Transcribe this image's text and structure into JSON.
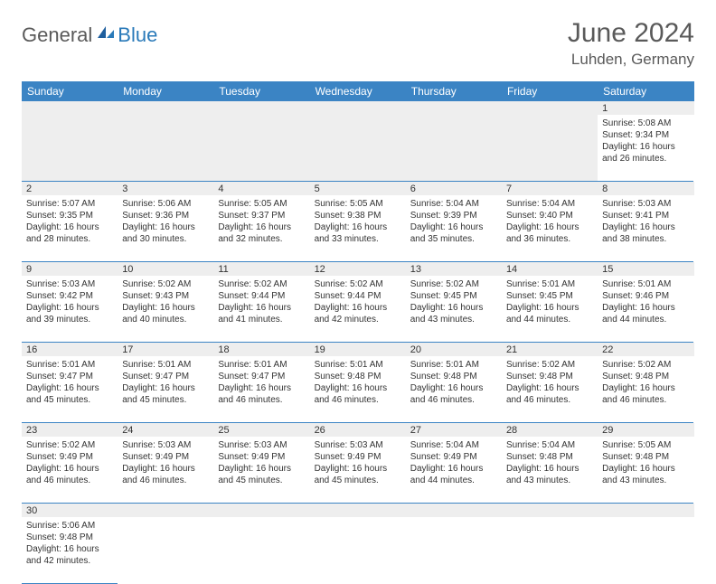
{
  "logo": {
    "general": "General",
    "blue": "Blue"
  },
  "title": "June 2024",
  "location": "Luhden, Germany",
  "colors": {
    "header_bg": "#3b84c4",
    "header_text": "#ffffff",
    "daynum_bg": "#eeeeee",
    "cell_border": "#3b84c4",
    "text": "#333333",
    "logo_gray": "#5a5a5a",
    "logo_blue": "#2a7ab9"
  },
  "day_headers": [
    "Sunday",
    "Monday",
    "Tuesday",
    "Wednesday",
    "Thursday",
    "Friday",
    "Saturday"
  ],
  "weeks": [
    [
      null,
      null,
      null,
      null,
      null,
      null,
      {
        "n": "1",
        "sr": "5:08 AM",
        "ss": "9:34 PM",
        "dl": "16 hours",
        "dm": "and 26 minutes."
      }
    ],
    [
      {
        "n": "2",
        "sr": "5:07 AM",
        "ss": "9:35 PM",
        "dl": "16 hours",
        "dm": "and 28 minutes."
      },
      {
        "n": "3",
        "sr": "5:06 AM",
        "ss": "9:36 PM",
        "dl": "16 hours",
        "dm": "and 30 minutes."
      },
      {
        "n": "4",
        "sr": "5:05 AM",
        "ss": "9:37 PM",
        "dl": "16 hours",
        "dm": "and 32 minutes."
      },
      {
        "n": "5",
        "sr": "5:05 AM",
        "ss": "9:38 PM",
        "dl": "16 hours",
        "dm": "and 33 minutes."
      },
      {
        "n": "6",
        "sr": "5:04 AM",
        "ss": "9:39 PM",
        "dl": "16 hours",
        "dm": "and 35 minutes."
      },
      {
        "n": "7",
        "sr": "5:04 AM",
        "ss": "9:40 PM",
        "dl": "16 hours",
        "dm": "and 36 minutes."
      },
      {
        "n": "8",
        "sr": "5:03 AM",
        "ss": "9:41 PM",
        "dl": "16 hours",
        "dm": "and 38 minutes."
      }
    ],
    [
      {
        "n": "9",
        "sr": "5:03 AM",
        "ss": "9:42 PM",
        "dl": "16 hours",
        "dm": "and 39 minutes."
      },
      {
        "n": "10",
        "sr": "5:02 AM",
        "ss": "9:43 PM",
        "dl": "16 hours",
        "dm": "and 40 minutes."
      },
      {
        "n": "11",
        "sr": "5:02 AM",
        "ss": "9:44 PM",
        "dl": "16 hours",
        "dm": "and 41 minutes."
      },
      {
        "n": "12",
        "sr": "5:02 AM",
        "ss": "9:44 PM",
        "dl": "16 hours",
        "dm": "and 42 minutes."
      },
      {
        "n": "13",
        "sr": "5:02 AM",
        "ss": "9:45 PM",
        "dl": "16 hours",
        "dm": "and 43 minutes."
      },
      {
        "n": "14",
        "sr": "5:01 AM",
        "ss": "9:45 PM",
        "dl": "16 hours",
        "dm": "and 44 minutes."
      },
      {
        "n": "15",
        "sr": "5:01 AM",
        "ss": "9:46 PM",
        "dl": "16 hours",
        "dm": "and 44 minutes."
      }
    ],
    [
      {
        "n": "16",
        "sr": "5:01 AM",
        "ss": "9:47 PM",
        "dl": "16 hours",
        "dm": "and 45 minutes."
      },
      {
        "n": "17",
        "sr": "5:01 AM",
        "ss": "9:47 PM",
        "dl": "16 hours",
        "dm": "and 45 minutes."
      },
      {
        "n": "18",
        "sr": "5:01 AM",
        "ss": "9:47 PM",
        "dl": "16 hours",
        "dm": "and 46 minutes."
      },
      {
        "n": "19",
        "sr": "5:01 AM",
        "ss": "9:48 PM",
        "dl": "16 hours",
        "dm": "and 46 minutes."
      },
      {
        "n": "20",
        "sr": "5:01 AM",
        "ss": "9:48 PM",
        "dl": "16 hours",
        "dm": "and 46 minutes."
      },
      {
        "n": "21",
        "sr": "5:02 AM",
        "ss": "9:48 PM",
        "dl": "16 hours",
        "dm": "and 46 minutes."
      },
      {
        "n": "22",
        "sr": "5:02 AM",
        "ss": "9:48 PM",
        "dl": "16 hours",
        "dm": "and 46 minutes."
      }
    ],
    [
      {
        "n": "23",
        "sr": "5:02 AM",
        "ss": "9:49 PM",
        "dl": "16 hours",
        "dm": "and 46 minutes."
      },
      {
        "n": "24",
        "sr": "5:03 AM",
        "ss": "9:49 PM",
        "dl": "16 hours",
        "dm": "and 46 minutes."
      },
      {
        "n": "25",
        "sr": "5:03 AM",
        "ss": "9:49 PM",
        "dl": "16 hours",
        "dm": "and 45 minutes."
      },
      {
        "n": "26",
        "sr": "5:03 AM",
        "ss": "9:49 PM",
        "dl": "16 hours",
        "dm": "and 45 minutes."
      },
      {
        "n": "27",
        "sr": "5:04 AM",
        "ss": "9:49 PM",
        "dl": "16 hours",
        "dm": "and 44 minutes."
      },
      {
        "n": "28",
        "sr": "5:04 AM",
        "ss": "9:48 PM",
        "dl": "16 hours",
        "dm": "and 43 minutes."
      },
      {
        "n": "29",
        "sr": "5:05 AM",
        "ss": "9:48 PM",
        "dl": "16 hours",
        "dm": "and 43 minutes."
      }
    ],
    [
      {
        "n": "30",
        "sr": "5:06 AM",
        "ss": "9:48 PM",
        "dl": "16 hours",
        "dm": "and 42 minutes."
      },
      null,
      null,
      null,
      null,
      null,
      null
    ]
  ],
  "labels": {
    "sunrise": "Sunrise:",
    "sunset": "Sunset:",
    "daylight": "Daylight:"
  }
}
